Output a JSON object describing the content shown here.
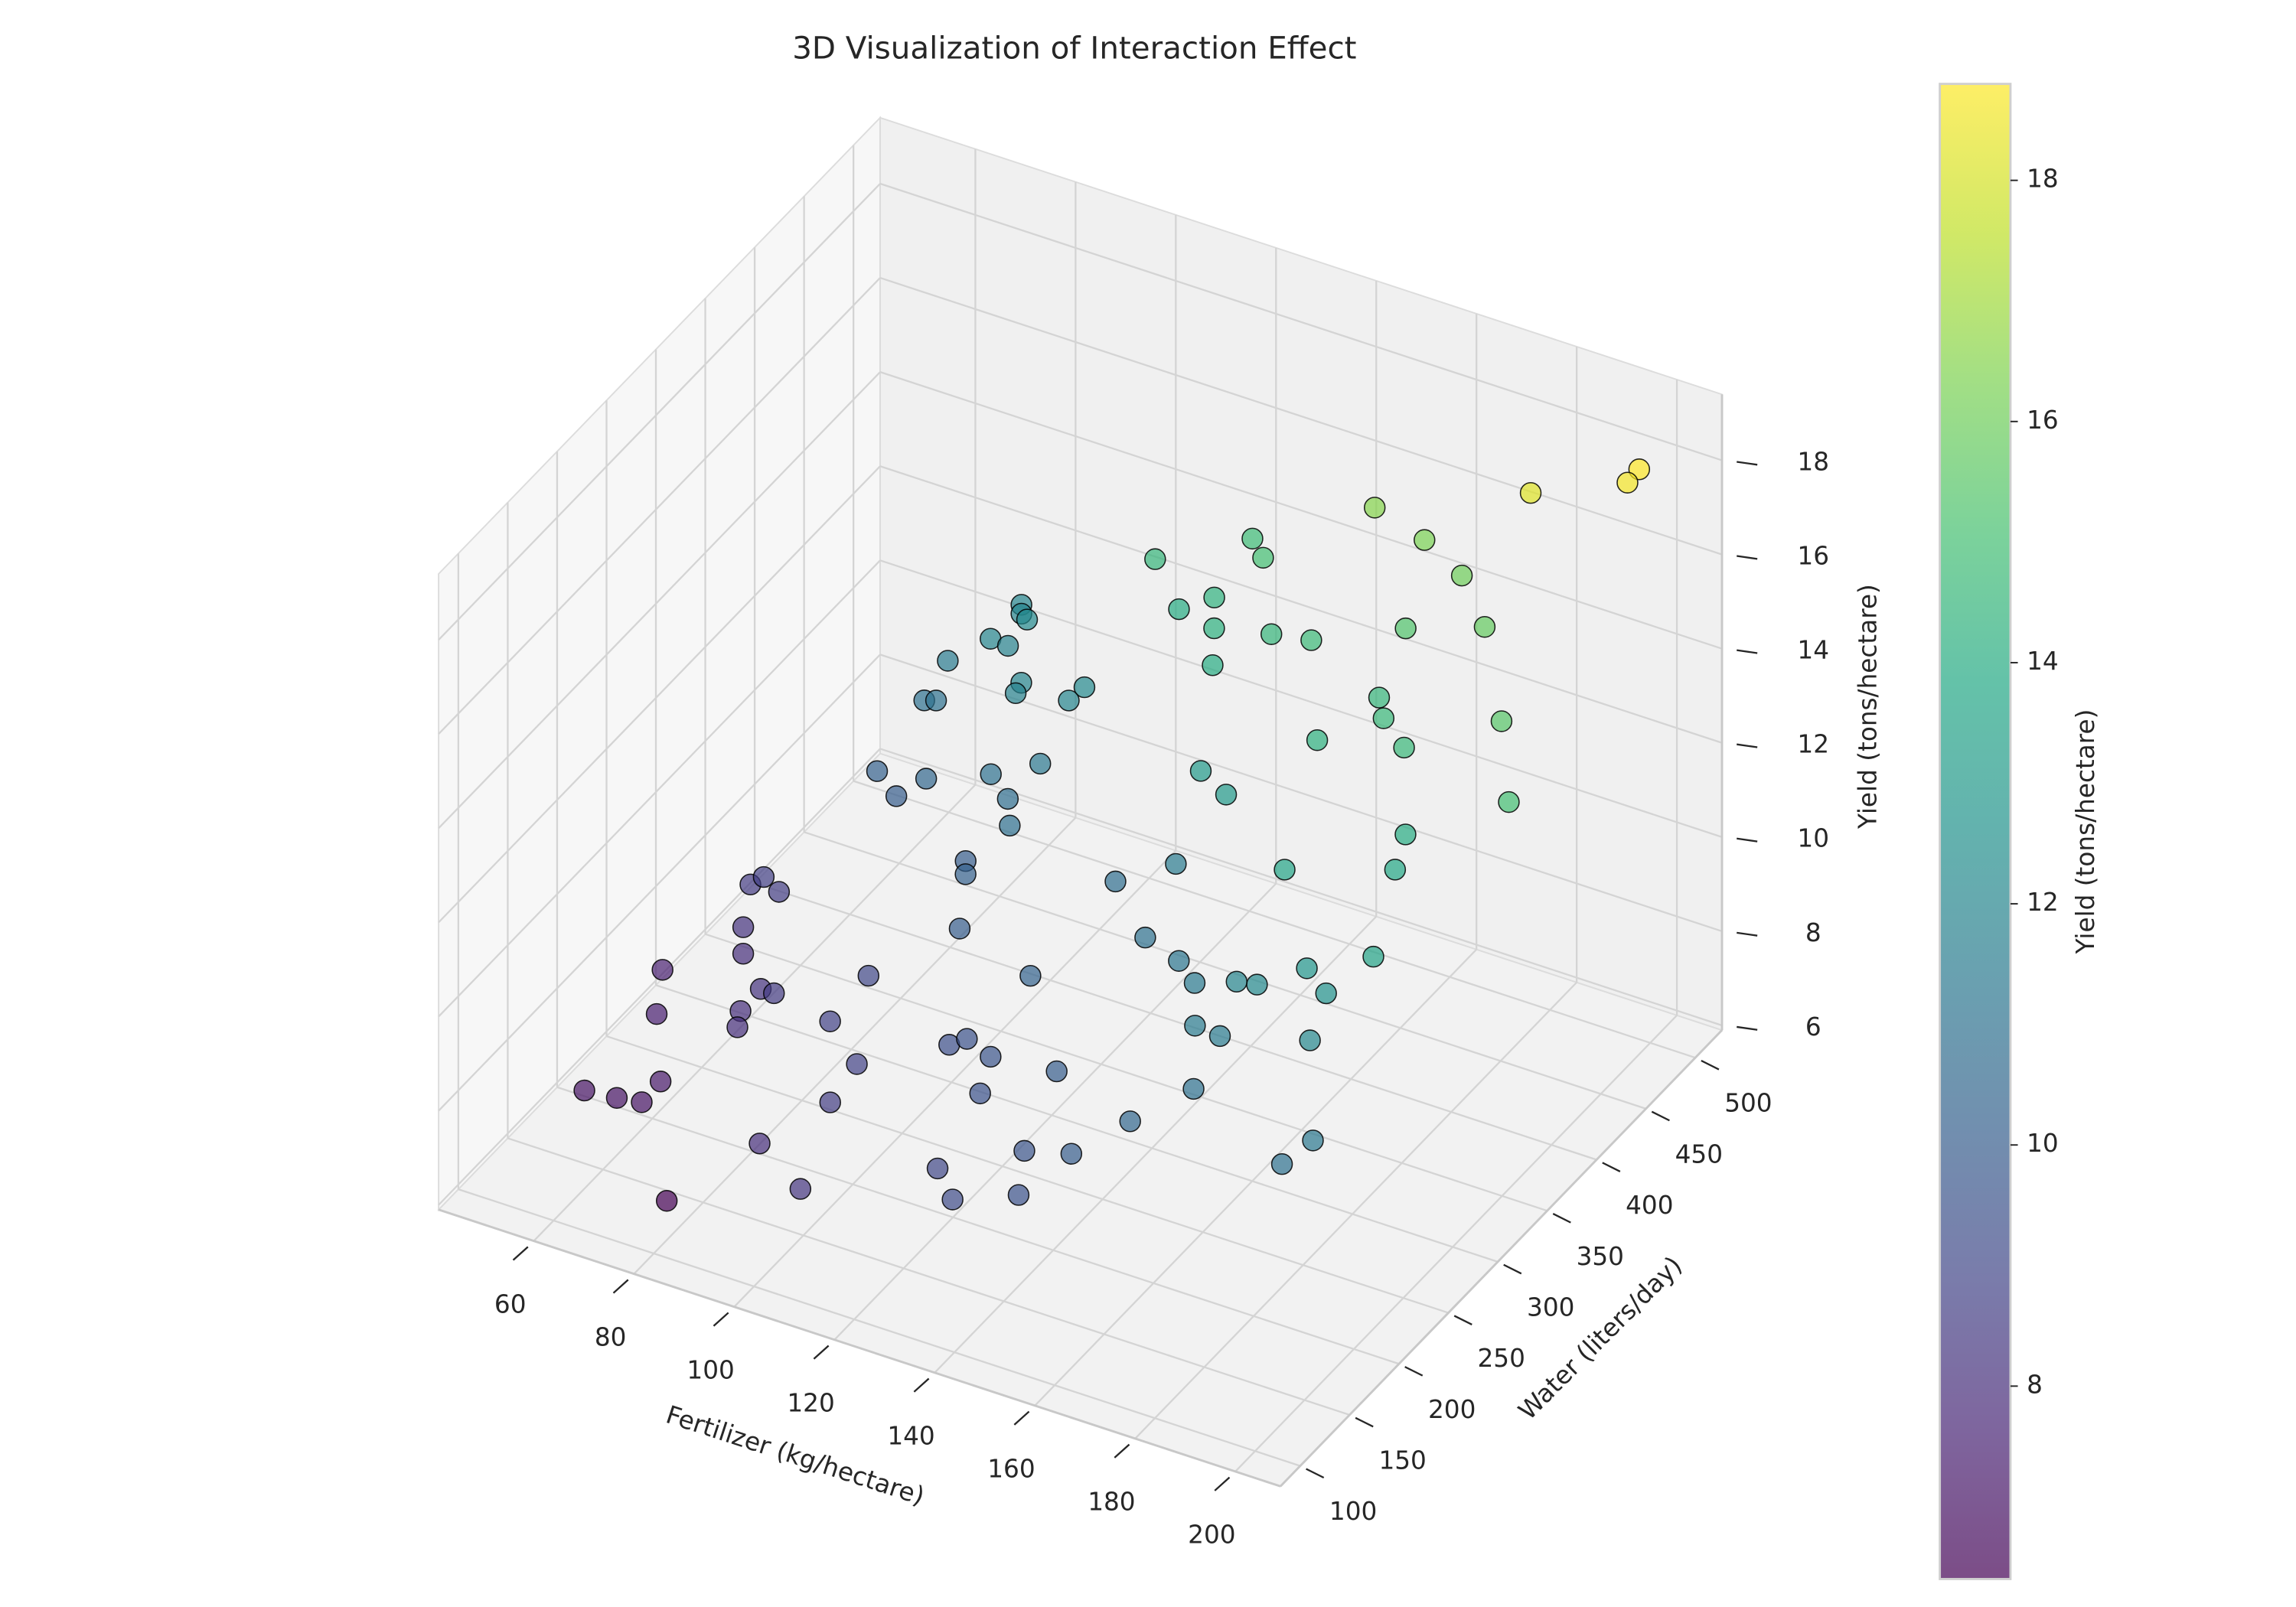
{
  "chart_data": {
    "type": "scatter3d",
    "title": "3D Visualization of Interaction Effect",
    "x_label": "Fertilizer (kg/hectare)",
    "y_label": "Water (liters/day)",
    "z_label": "Yield (tons/hectare)",
    "colorbar_label": "Yield (tons/hectare)",
    "colormap": "viridis",
    "alpha": 0.7,
    "edgecolor": "#000000",
    "xlim": [
      41,
      209
    ],
    "ylim": [
      80,
      527
    ],
    "zlim": [
      5.9,
      19.4
    ],
    "xticks": [
      60,
      80,
      100,
      120,
      140,
      160,
      180,
      200
    ],
    "yticks": [
      100,
      150,
      200,
      250,
      300,
      350,
      400,
      450,
      500
    ],
    "zticks": [
      6,
      8,
      10,
      12,
      14,
      16,
      18
    ],
    "colorbar_ticks": [
      8,
      10,
      12,
      14,
      16,
      18
    ],
    "grid": true,
    "x": [
      203.3,
      202.1,
      186.2,
      153.0,
      163.9,
      172.7,
      182.3,
      127.3,
      133.1,
      113.5,
      126.7,
      121.0,
      130.5,
      142.1,
      150.4,
      167.1,
      134.3,
      167.7,
      172.1,
      196.6,
      162.5,
      179.5,
      206.1,
      188.3,
      190.5,
      172.4,
      141.1,
      148.4,
      197.9,
      184.7,
      189.9,
      175.4,
      170.5,
      190.9,
      172.5,
      167.2,
      160.2,
      153.2,
      143.3,
      140.6,
      129.2,
      172.8,
      200.5,
      197.2,
      164.5,
      82.7,
      84.0,
      87.1,
      83.0,
      85.3,
      76.3,
      94.1,
      93.4,
      105.7,
      103.9,
      75.1,
      76.9,
      72.8,
      83.4,
      78.0,
      96.0,
      104.0,
      100.8,
      105.7,
      98.0,
      101.3,
      107.0,
      126.7,
      58.5,
      60.8,
      64.6,
      61.6,
      64.1,
      50.8,
      73.3,
      78.0,
      55.7,
      72.1,
      74.0,
      93.2,
      92.7,
      103.0,
      103.2,
      64.8,
      53.2,
      59.2,
      63.6,
      94.4,
      109.3,
      77.7,
      118.3,
      120.8,
      127.7,
      142.6,
      130.8,
      146.6,
      156.9,
      131.9,
      140.1,
      151.5
    ],
    "y": [
      472.1,
      466.3,
      449.0,
      459.5,
      454.6,
      447.8,
      422.2,
      466.1,
      447.5,
      437.6,
      430.5,
      423.7,
      411.1,
      410.2,
      408.5,
      419.3,
      390.3,
      389.4,
      371.6,
      366.7,
      353.1,
      354.8,
      325.9,
      311.6,
      289.9,
      269.9,
      343.8,
      332.4,
      230.4,
      230.0,
      223.1,
      226.7,
      230.9,
      201.7,
      203.9,
      205.5,
      240.7,
      260.2,
      276.4,
      321.1,
      317.8,
      175.7,
      156.0,
      141.4,
      153.6,
      458.5,
      451.9,
      441.9,
      425.7,
      431.7,
      416.4,
      400.5,
      398.4,
      405.6,
      398.9,
      398.7,
      401.5,
      362.6,
      358.5,
      355.7,
      360.1,
      369.5,
      352.9,
      330.0,
      324.4,
      307.6,
      272.7,
      244.4,
      306.9,
      308.7,
      304.9,
      283.9,
      271.2,
      257.0,
      242.3,
      231.8,
      226.2,
      227.9,
      215.1,
      250.4,
      214.1,
      188.9,
      160.9,
      184.0,
      165.7,
      168.1,
      171.0,
      134.1,
      99.8,
      124.8,
      204.8,
      210.0,
      199.0,
      190.3,
      172.7,
      137.3,
      132.6,
      124.0,
      97.6,
      106.6
    ],
    "z": [
      18.8,
      18.6,
      18.2,
      16.5,
      16.3,
      16.0,
      15.8,
      14.8,
      15.0,
      14.5,
      14.3,
      14.0,
      14.2,
      14.5,
      14.7,
      15.3,
      14.0,
      14.5,
      14.6,
      15.5,
      14.2,
      14.6,
      15.0,
      14.0,
      13.8,
      13.6,
      13.0,
      13.0,
      13.5,
      12.8,
      12.6,
      12.2,
      12.0,
      12.1,
      11.5,
      11.5,
      11.4,
      11.2,
      11.0,
      11.5,
      10.8,
      11.0,
      11.3,
      11.0,
      10.5,
      12.0,
      12.0,
      12.2,
      12.0,
      11.8,
      11.5,
      12.0,
      11.8,
      12.2,
      12.0,
      11.0,
      11.0,
      10.2,
      10.5,
      10.0,
      11.0,
      11.3,
      10.8,
      10.9,
      10.0,
      10.2,
      10.0,
      10.3,
      8.5,
      8.7,
      8.6,
      8.2,
      8.0,
      7.5,
      8.2,
      8.5,
      7.4,
      8.0,
      8.0,
      9.0,
      8.8,
      8.8,
      8.6,
      7.2,
      7.0,
      7.0,
      7.0,
      8.0,
      8.3,
      6.4,
      9.4,
      9.5,
      9.6,
      10.0,
      9.5,
      9.6,
      10.0,
      9.0,
      9.2,
      9.5
    ]
  }
}
